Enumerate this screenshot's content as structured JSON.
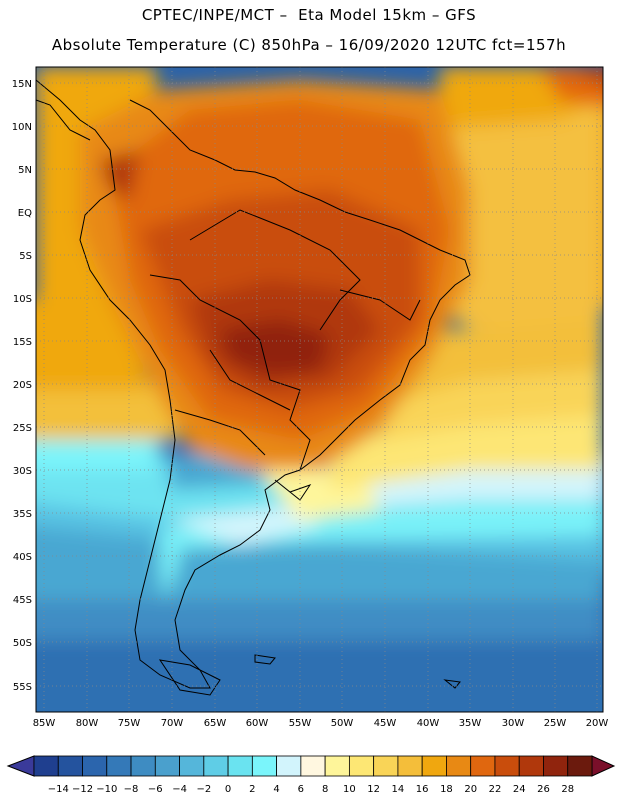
{
  "header": {
    "line1": "CPTEC/INPE/MCT –  Eta Model 15km – GFS",
    "line2": "Absolute Temperature (C) 850hPa – 16/09/2020 12UTC fct=157h"
  },
  "map": {
    "lat_labels": [
      "15N",
      "10N",
      "5N",
      "EQ",
      "5S",
      "10S",
      "15S",
      "20S",
      "25S",
      "30S",
      "35S",
      "40S",
      "45S",
      "50S",
      "55S"
    ],
    "lon_labels": [
      "85W",
      "80W",
      "75W",
      "70W",
      "65W",
      "60W",
      "55W",
      "50W",
      "45W",
      "40W",
      "35W",
      "30W",
      "25W",
      "20W"
    ]
  },
  "colorbar": {
    "ticks": [
      "-14",
      "-12",
      "-10",
      "-8",
      "-6",
      "-4",
      "-2",
      "0",
      "2",
      "4",
      "6",
      "8",
      "10",
      "12",
      "14",
      "16",
      "18",
      "20",
      "22",
      "24",
      "26",
      "28"
    ],
    "colors": [
      "#1f3f8f",
      "#24539e",
      "#2b65ad",
      "#3479b8",
      "#3e8cc2",
      "#4aa0cd",
      "#55b6da",
      "#5fcde6",
      "#6ae3f0",
      "#7af5fb",
      "#d2f4fc",
      "#fff7e0",
      "#fef59a",
      "#fde774",
      "#f9d457",
      "#f4be3a",
      "#f0a70f",
      "#e88914",
      "#e0670f",
      "#c94d0c",
      "#b0380c",
      "#90240d",
      "#6b1a0d"
    ]
  }
}
